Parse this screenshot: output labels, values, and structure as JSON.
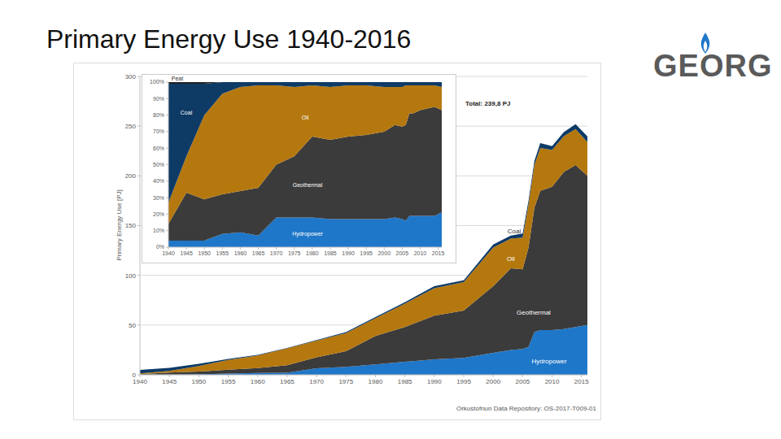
{
  "title": "Primary Energy Use 1940-2016",
  "logo": "GEORG",
  "source": "Orkustofnun Data Repository: OS-2017-T009-01",
  "chart_data": [
    {
      "type": "area",
      "stacked": true,
      "y_label": "Primary Energy Use [PJ]",
      "annotation": "Total: 239,8 PJ",
      "grid": true,
      "x": [
        1940,
        1945,
        1950,
        1955,
        1960,
        1965,
        1970,
        1975,
        1980,
        1985,
        1990,
        1995,
        2000,
        2003,
        2005,
        2006,
        2007,
        2008,
        2010,
        2012,
        2014,
        2016
      ],
      "xlim": [
        1940,
        2016
      ],
      "xticks": [
        1940,
        1945,
        1950,
        1955,
        1960,
        1965,
        1970,
        1975,
        1980,
        1985,
        1990,
        1995,
        2000,
        2005,
        2010,
        2015
      ],
      "ylim": [
        0,
        300
      ],
      "yticks": [
        0,
        50,
        100,
        150,
        200,
        250,
        300
      ],
      "series": [
        {
          "name": "Hydropower",
          "color": "#1f77c9",
          "values": [
            0.2,
            0.3,
            0.5,
            1.3,
            1.8,
            2.0,
            6.5,
            8.0,
            10.5,
            13,
            15.5,
            17,
            22,
            25,
            26,
            28,
            43,
            45,
            45,
            46,
            48,
            50
          ]
        },
        {
          "name": "Geothermal",
          "color": "#3b3b3b",
          "values": [
            0.5,
            2.0,
            2.7,
            3.8,
            5.0,
            7.7,
            11.0,
            15.7,
            28.5,
            35,
            44,
            47.6,
            67,
            82,
            80,
            100,
            125,
            140,
            144,
            158,
            163,
            150
          ]
        },
        {
          "name": "Oil",
          "color": "#b5780f",
          "values": [
            0.65,
            1.5,
            5.6,
            9.8,
            12.6,
            16.8,
            16.8,
            18.2,
            17.8,
            23.5,
            27.5,
            28.5,
            39,
            30,
            32,
            43,
            43,
            43,
            37,
            36,
            36,
            34
          ]
        },
        {
          "name": "Coal",
          "color": "#0e3a66",
          "values": [
            3.65,
            3.2,
            2.2,
            1.1,
            0.6,
            0.5,
            0.7,
            1.1,
            1.2,
            1.5,
            2.0,
            1.9,
            3,
            3,
            4,
            4,
            4,
            5,
            4,
            4,
            5,
            5.8
          ]
        }
      ]
    },
    {
      "type": "area",
      "stacked": true,
      "grid": false,
      "x": [
        1940,
        1945,
        1950,
        1955,
        1960,
        1965,
        1970,
        1975,
        1980,
        1985,
        1990,
        1995,
        2000,
        2003,
        2005,
        2006,
        2007,
        2008,
        2010,
        2012,
        2014,
        2016
      ],
      "xlim": [
        1940,
        2016
      ],
      "xticks": [
        1940,
        1945,
        1950,
        1955,
        1960,
        1965,
        1970,
        1975,
        1980,
        1985,
        1990,
        1995,
        2000,
        2005,
        2010,
        2015
      ],
      "ylim": [
        0,
        100
      ],
      "yticks": [
        {
          "value": 0,
          "label": "0%"
        },
        {
          "value": 10,
          "label": "10%"
        },
        {
          "value": 20,
          "label": "20%"
        },
        {
          "value": 30,
          "label": "30%"
        },
        {
          "value": 40,
          "label": "40%"
        },
        {
          "value": 50,
          "label": "50%"
        },
        {
          "value": 60,
          "label": "60%"
        },
        {
          "value": 70,
          "label": "70%"
        },
        {
          "value": 80,
          "label": "80%"
        },
        {
          "value": 90,
          "label": "90%"
        },
        {
          "value": 100,
          "label": "100%"
        }
      ],
      "series": [
        {
          "name": "Hydropower",
          "color": "#1f77c9",
          "values": [
            4,
            4,
            4,
            8,
            9,
            7,
            18,
            18,
            18,
            17,
            17,
            17,
            17,
            18,
            17,
            16,
            19,
            19,
            19,
            19,
            19,
            21
          ]
        },
        {
          "name": "Geothermal",
          "color": "#3b3b3b",
          "values": [
            10,
            29,
            25,
            24,
            25,
            29,
            32,
            37,
            49,
            48,
            50,
            51,
            53,
            56,
            56,
            58,
            62,
            62,
            64,
            65,
            66,
            62
          ]
        },
        {
          "name": "Oil",
          "color": "#b5780f",
          "values": [
            13,
            22,
            51,
            61,
            63,
            62,
            48,
            42,
            31,
            32,
            31,
            30,
            27,
            23,
            24,
            24,
            17,
            17,
            15,
            14,
            13,
            14
          ]
        },
        {
          "name": "Coal",
          "color": "#0e3a66",
          "values": [
            72,
            44,
            19,
            7,
            3,
            2,
            2,
            3,
            2,
            3,
            2,
            2,
            3,
            3,
            3,
            2,
            2,
            2,
            2,
            2,
            2,
            3
          ]
        },
        {
          "name": "Peat",
          "color": "#222222",
          "values": [
            1,
            1,
            1,
            0,
            0,
            0,
            0,
            0,
            0,
            0,
            0,
            0,
            0,
            0,
            0,
            0,
            0,
            0,
            0,
            0,
            0,
            0
          ]
        }
      ]
    }
  ]
}
